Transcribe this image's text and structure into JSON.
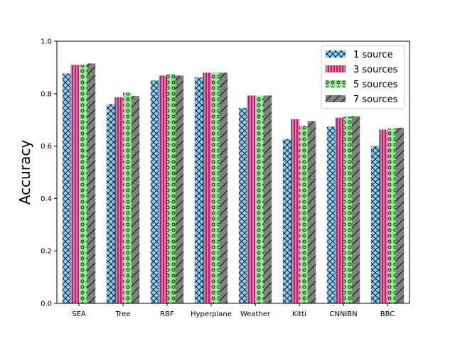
{
  "chart_data": {
    "type": "bar",
    "title": "",
    "xlabel": "",
    "ylabel": "Accuracy",
    "ylim": [
      0,
      1.0
    ],
    "yticks": [
      0.0,
      0.2,
      0.4,
      0.6,
      0.8,
      1.0
    ],
    "ytick_labels": [
      "0.0",
      "0.2",
      "0.4",
      "0.6",
      "0.8",
      "1.0"
    ],
    "grid": false,
    "legend_position": "top-right",
    "categories": [
      "SEA",
      "Tree",
      "RBF",
      "Hyperplane",
      "Weather",
      "Kitti",
      "CNNIBN",
      "BBC"
    ],
    "series": [
      {
        "name": "1 source",
        "color": "#87cefa",
        "hatch": "crosshatch",
        "values": [
          0.877,
          0.76,
          0.85,
          0.862,
          0.746,
          0.627,
          0.674,
          0.6
        ]
      },
      {
        "name": "3 sources",
        "color": "#ff69b4",
        "hatch": "vertical",
        "values": [
          0.91,
          0.786,
          0.869,
          0.88,
          0.793,
          0.703,
          0.708,
          0.663
        ]
      },
      {
        "name": "5 sources",
        "color": "#90ee90",
        "hatch": "circles",
        "values": [
          0.91,
          0.804,
          0.876,
          0.88,
          0.792,
          0.678,
          0.713,
          0.667
        ]
      },
      {
        "name": "7 sources",
        "color": "#808080",
        "hatch": "diagonal",
        "values": [
          0.915,
          0.791,
          0.869,
          0.88,
          0.793,
          0.695,
          0.714,
          0.67
        ]
      }
    ]
  }
}
